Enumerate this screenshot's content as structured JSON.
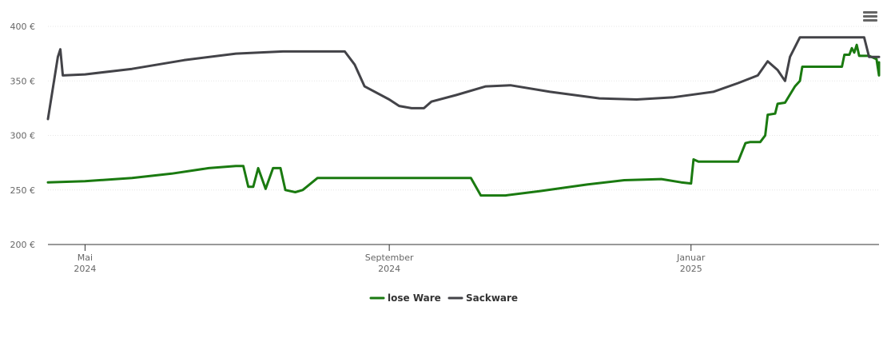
{
  "menu": {
    "icon": "hamburger-menu-icon"
  },
  "chart_data": {
    "type": "line",
    "title": "",
    "xlabel": "",
    "ylabel": "",
    "ylim": [
      200,
      400
    ],
    "y_ticks": [
      {
        "value": 400,
        "label": "400 €"
      },
      {
        "value": 350,
        "label": "350 €"
      },
      {
        "value": 300,
        "label": "300 €"
      },
      {
        "value": 250,
        "label": "250 €"
      },
      {
        "value": 200,
        "label": "200 €"
      }
    ],
    "x_range": [
      "2024-04-16",
      "2025-03-18"
    ],
    "x_ticks": [
      {
        "date": "2024-05-01",
        "month": "Mai",
        "year": "2024"
      },
      {
        "date": "2024-09-01",
        "month": "September",
        "year": "2024"
      },
      {
        "date": "2025-01-01",
        "month": "Januar",
        "year": "2025"
      }
    ],
    "grid": true,
    "legend_position": "bottom-center",
    "series": [
      {
        "name": "lose Ware",
        "color": "#1a7a10",
        "points": [
          [
            "2024-04-16",
            257
          ],
          [
            "2024-05-01",
            258
          ],
          [
            "2024-05-20",
            261
          ],
          [
            "2024-06-05",
            265
          ],
          [
            "2024-06-20",
            270
          ],
          [
            "2024-07-01",
            272
          ],
          [
            "2024-07-04",
            272
          ],
          [
            "2024-07-06",
            253
          ],
          [
            "2024-07-08",
            253
          ],
          [
            "2024-07-10",
            270
          ],
          [
            "2024-07-13",
            251
          ],
          [
            "2024-07-16",
            270
          ],
          [
            "2024-07-19",
            270
          ],
          [
            "2024-07-21",
            250
          ],
          [
            "2024-07-25",
            248
          ],
          [
            "2024-07-28",
            250
          ],
          [
            "2024-08-03",
            261
          ],
          [
            "2024-08-20",
            261
          ],
          [
            "2024-09-10",
            261
          ],
          [
            "2024-10-01",
            261
          ],
          [
            "2024-10-04",
            261
          ],
          [
            "2024-10-08",
            245
          ],
          [
            "2024-10-18",
            245
          ],
          [
            "2024-11-01",
            249
          ],
          [
            "2024-11-20",
            255
          ],
          [
            "2024-12-05",
            259
          ],
          [
            "2024-12-20",
            260
          ],
          [
            "2024-12-28",
            257
          ],
          [
            "2025-01-01",
            256
          ],
          [
            "2025-01-02",
            278
          ],
          [
            "2025-01-04",
            276
          ],
          [
            "2025-01-12",
            276
          ],
          [
            "2025-01-20",
            276
          ],
          [
            "2025-01-23",
            293
          ],
          [
            "2025-01-25",
            294
          ],
          [
            "2025-01-29",
            294
          ],
          [
            "2025-01-31",
            300
          ],
          [
            "2025-02-01",
            319
          ],
          [
            "2025-02-04",
            320
          ],
          [
            "2025-02-05",
            329
          ],
          [
            "2025-02-08",
            330
          ],
          [
            "2025-02-12",
            345
          ],
          [
            "2025-02-14",
            350
          ],
          [
            "2025-02-15",
            363
          ],
          [
            "2025-02-20",
            363
          ],
          [
            "2025-02-28",
            363
          ],
          [
            "2025-03-01",
            363
          ],
          [
            "2025-03-03",
            363
          ],
          [
            "2025-03-04",
            374
          ],
          [
            "2025-03-06",
            374
          ],
          [
            "2025-03-07",
            380
          ],
          [
            "2025-03-08",
            376
          ],
          [
            "2025-03-09",
            383
          ],
          [
            "2025-03-10",
            373
          ],
          [
            "2025-03-14",
            373
          ],
          [
            "2025-03-17",
            370
          ],
          [
            "2025-03-18",
            355
          ],
          [
            "2025-03-18",
            367
          ],
          [
            "2025-03-18",
            367
          ]
        ]
      },
      {
        "name": "Sackware",
        "color": "#434348",
        "points": [
          [
            "2024-04-16",
            315
          ],
          [
            "2024-04-20",
            372
          ],
          [
            "2024-04-21",
            379
          ],
          [
            "2024-04-22",
            355
          ],
          [
            "2024-05-01",
            356
          ],
          [
            "2024-05-20",
            361
          ],
          [
            "2024-06-10",
            369
          ],
          [
            "2024-07-01",
            375
          ],
          [
            "2024-07-20",
            377
          ],
          [
            "2024-08-10",
            377
          ],
          [
            "2024-08-14",
            377
          ],
          [
            "2024-08-18",
            365
          ],
          [
            "2024-08-22",
            345
          ],
          [
            "2024-09-01",
            333
          ],
          [
            "2024-09-05",
            327
          ],
          [
            "2024-09-10",
            325
          ],
          [
            "2024-09-15",
            325
          ],
          [
            "2024-09-18",
            331
          ],
          [
            "2024-09-28",
            337
          ],
          [
            "2024-10-10",
            345
          ],
          [
            "2024-10-20",
            346
          ],
          [
            "2024-11-05",
            340
          ],
          [
            "2024-11-25",
            334
          ],
          [
            "2024-12-10",
            333
          ],
          [
            "2024-12-25",
            335
          ],
          [
            "2025-01-10",
            340
          ],
          [
            "2025-01-20",
            348
          ],
          [
            "2025-01-28",
            355
          ],
          [
            "2025-02-01",
            368
          ],
          [
            "2025-02-05",
            360
          ],
          [
            "2025-02-08",
            350
          ],
          [
            "2025-02-10",
            372
          ],
          [
            "2025-02-14",
            390
          ],
          [
            "2025-02-20",
            390
          ],
          [
            "2025-03-05",
            390
          ],
          [
            "2025-03-12",
            390
          ],
          [
            "2025-03-14",
            372
          ],
          [
            "2025-03-18",
            372
          ]
        ]
      }
    ]
  }
}
